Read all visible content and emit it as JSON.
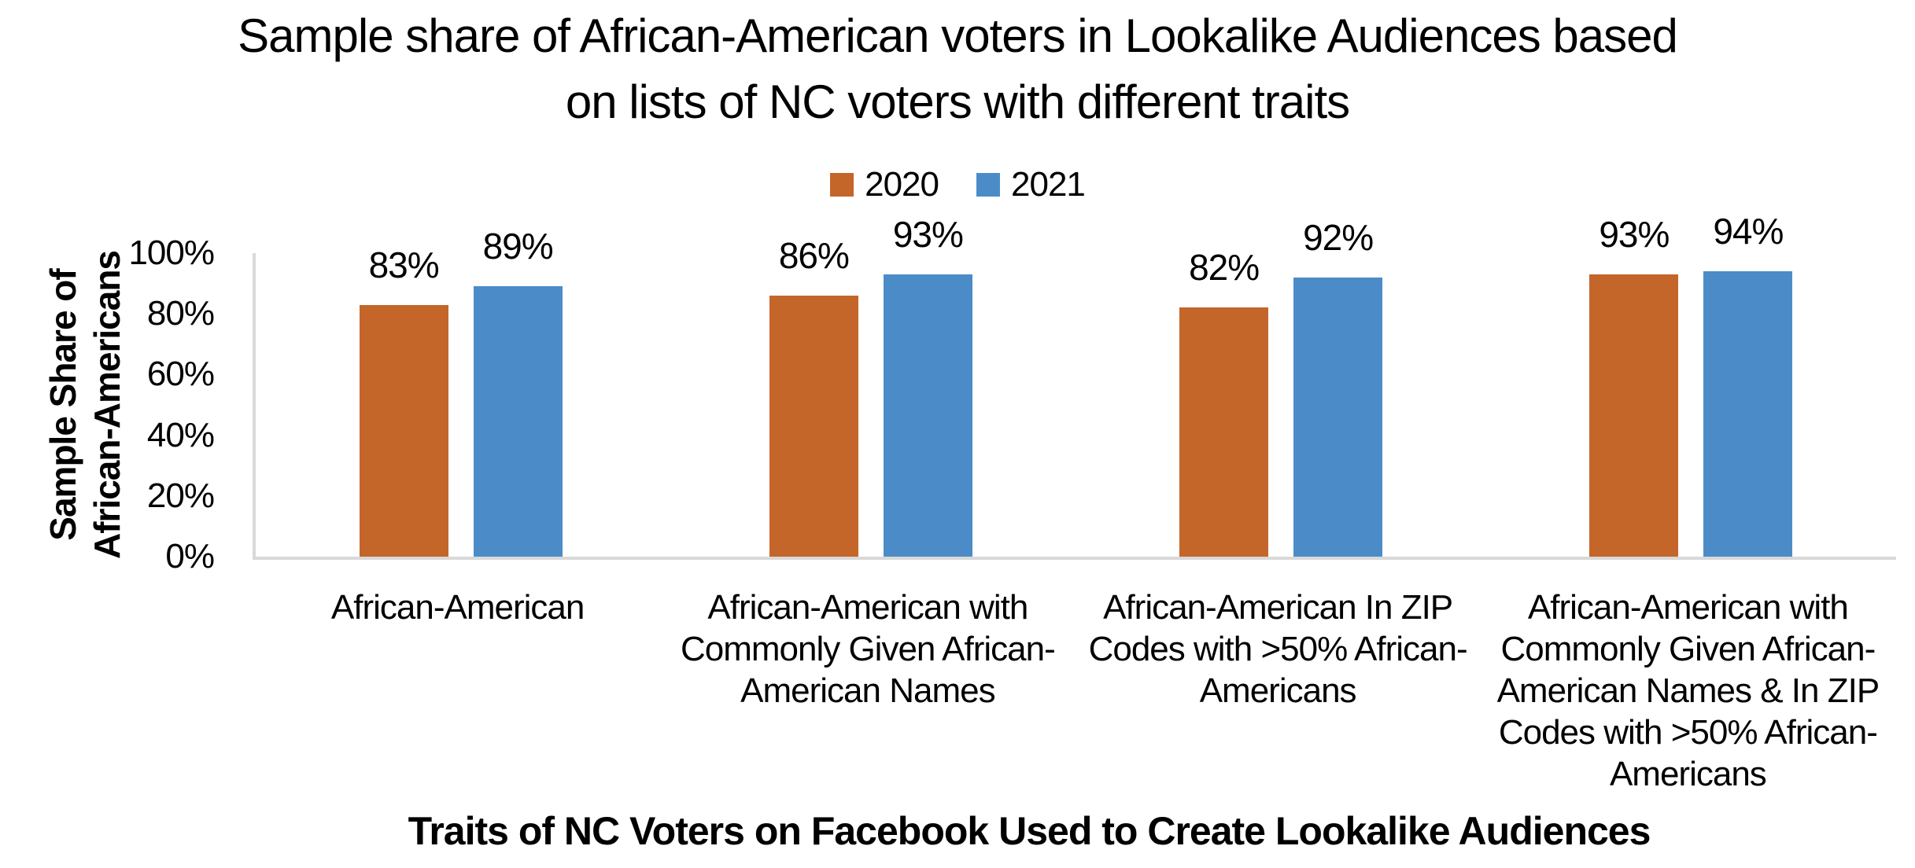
{
  "chart_data": {
    "type": "bar",
    "title": "Sample share of African-American voters in Lookalike Audiences based\non lists of NC voters with different traits",
    "xlabel": "Traits of NC Voters on Facebook Used to Create Lookalike Audiences",
    "ylabel": "Sample Share of\nAfrican-Americans",
    "categories": [
      "African-American",
      "African-American with\nCommonly Given African-\nAmerican Names",
      "African-American In ZIP\nCodes with >50% African-\nAmericans",
      "African-American with\nCommonly Given African-\nAmerican Names & In ZIP\nCodes with >50% African-\nAmericans"
    ],
    "series": [
      {
        "name": "2020",
        "color": "#C4662A",
        "values": [
          83,
          86,
          82,
          93
        ]
      },
      {
        "name": "2021",
        "color": "#4B8CC8",
        "values": [
          89,
          93,
          92,
          94
        ]
      }
    ],
    "data_label_suffix": "%",
    "yticks": [
      "100%",
      "80%",
      "60%",
      "40%",
      "20%",
      "0%"
    ],
    "ylim": [
      0,
      100
    ],
    "grid": false,
    "legend_position": "top-center",
    "axis_line_color": "#D9D9D9",
    "background_color": "#FFFFFF",
    "text_color": "#000000"
  }
}
